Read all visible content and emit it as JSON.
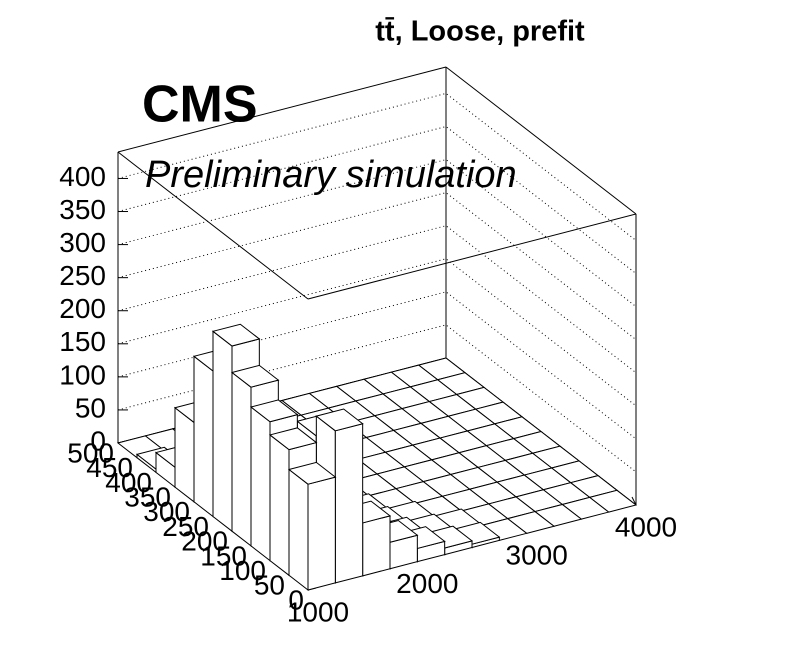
{
  "chart_data": {
    "type": "lego",
    "title": "tt̄, Loose, prefit",
    "experiment": "CMS",
    "subtitle": "Preliminary simulation",
    "xlim": [
      1000,
      4000
    ],
    "xticks": [
      1000,
      2000,
      3000,
      4000
    ],
    "ylim": [
      0,
      500
    ],
    "yticks": [
      0,
      50,
      100,
      150,
      200,
      250,
      300,
      350,
      400,
      450,
      500
    ],
    "zlim": [
      0,
      440
    ],
    "zticks": [
      0,
      50,
      100,
      150,
      200,
      250,
      300,
      350,
      400
    ],
    "xbins": [
      1000,
      1250,
      1500,
      1750,
      2000,
      2250,
      2500,
      2750,
      3000,
      3250,
      3500,
      3750,
      4000
    ],
    "ybins": [
      0,
      50,
      100,
      150,
      200,
      250,
      300,
      350,
      400,
      450,
      500
    ],
    "z": [
      [
        160,
        190,
        210,
        240,
        280,
        220,
        120,
        30,
        5,
        0
      ],
      [
        230,
        200,
        170,
        130,
        90,
        40,
        10,
        2,
        0,
        0
      ],
      [
        80,
        60,
        40,
        20,
        10,
        5,
        0,
        0,
        0,
        0
      ],
      [
        40,
        30,
        15,
        8,
        3,
        0,
        0,
        0,
        0,
        0
      ],
      [
        20,
        12,
        6,
        3,
        0,
        0,
        0,
        0,
        0,
        0
      ],
      [
        10,
        6,
        3,
        0,
        0,
        0,
        0,
        0,
        0,
        0
      ],
      [
        5,
        3,
        0,
        0,
        0,
        0,
        0,
        0,
        0,
        0
      ],
      [
        0,
        0,
        0,
        0,
        0,
        0,
        0,
        0,
        0,
        0
      ],
      [
        0,
        0,
        0,
        0,
        0,
        0,
        0,
        0,
        0,
        0
      ],
      [
        0,
        0,
        0,
        0,
        0,
        0,
        0,
        0,
        0,
        0
      ],
      [
        0,
        0,
        0,
        0,
        0,
        0,
        0,
        0,
        0,
        0
      ],
      [
        0,
        0,
        0,
        0,
        0,
        0,
        0,
        0,
        0,
        0
      ]
    ],
    "color": "#ffffff",
    "grid": true
  }
}
